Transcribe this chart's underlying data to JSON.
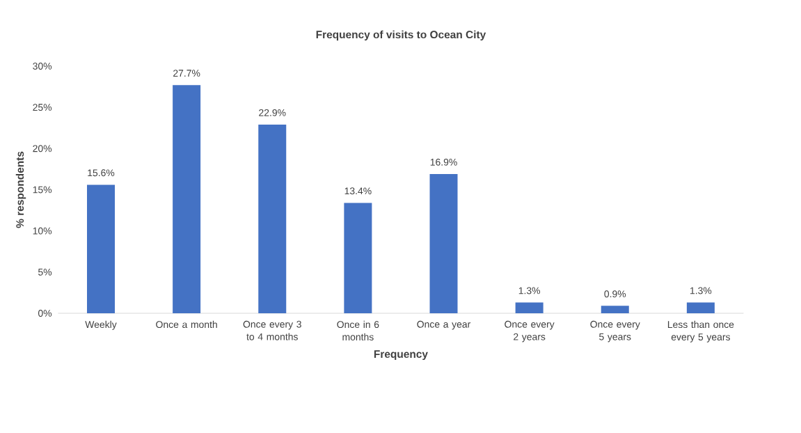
{
  "chart_data": {
    "type": "bar",
    "title": "Frequency of visits to Ocean City",
    "xlabel": "Frequency",
    "ylabel": "% respondents",
    "categories": [
      "Weekly",
      "Once a month",
      "Once every 3 to 4 months",
      "Once in 6 months",
      "Once a year",
      "Once every 2 years",
      "Once every 5 years",
      "Less than once every 5 years"
    ],
    "values": [
      15.6,
      27.7,
      22.9,
      13.4,
      16.9,
      1.3,
      0.9,
      1.3
    ],
    "value_labels": [
      "15.6%",
      "27.7%",
      "22.9%",
      "13.4%",
      "16.9%",
      "1.3%",
      "0.9%",
      "1.3%"
    ],
    "color": "#4472c4",
    "ylim": [
      0,
      30
    ],
    "yticks": [
      {
        "value": 0,
        "label": "0%"
      },
      {
        "value": 5,
        "label": "5%"
      },
      {
        "value": 10,
        "label": "10%"
      },
      {
        "value": 15,
        "label": "15%"
      },
      {
        "value": 20,
        "label": "20%"
      },
      {
        "value": 25,
        "label": "25%"
      },
      {
        "value": 30,
        "label": "30%"
      }
    ]
  }
}
